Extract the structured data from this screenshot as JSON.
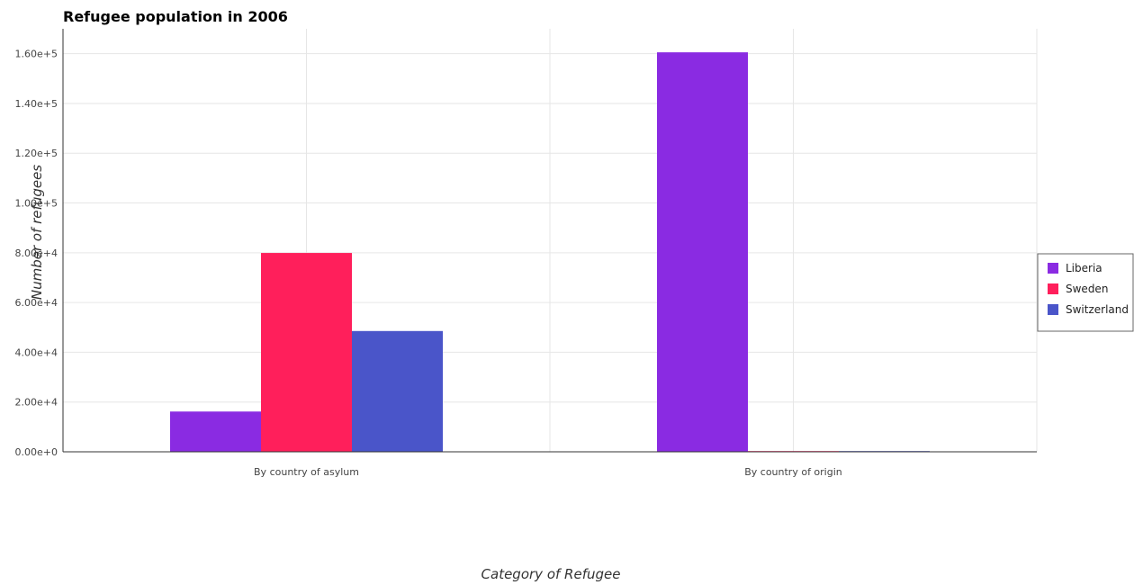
{
  "chart_data": {
    "type": "bar",
    "title": "Refugee population in 2006",
    "xlabel": "Category of Refugee",
    "ylabel": "Number of refugees",
    "categories": [
      "By country of asylum",
      "By country of origin"
    ],
    "series": [
      {
        "name": "Liberia",
        "color": "#8a2be2",
        "values": [
          16185,
          160548
        ]
      },
      {
        "name": "Sweden",
        "color": "#ff1f5b",
        "values": [
          79913,
          15
        ]
      },
      {
        "name": "Switzerland",
        "color": "#4a55c9",
        "values": [
          48542,
          25
        ]
      }
    ],
    "ylim": [
      0,
      170000
    ],
    "yticks": [
      0,
      20000,
      40000,
      60000,
      80000,
      100000,
      120000,
      140000,
      160000
    ],
    "ytick_labels": [
      "0.00e+0",
      "2.00e+4",
      "4.00e+4",
      "6.00e+4",
      "8.00e+4",
      "1.00e+5",
      "1.20e+5",
      "1.40e+5",
      "1.60e+5"
    ],
    "grid": true,
    "legend_position": "right"
  }
}
